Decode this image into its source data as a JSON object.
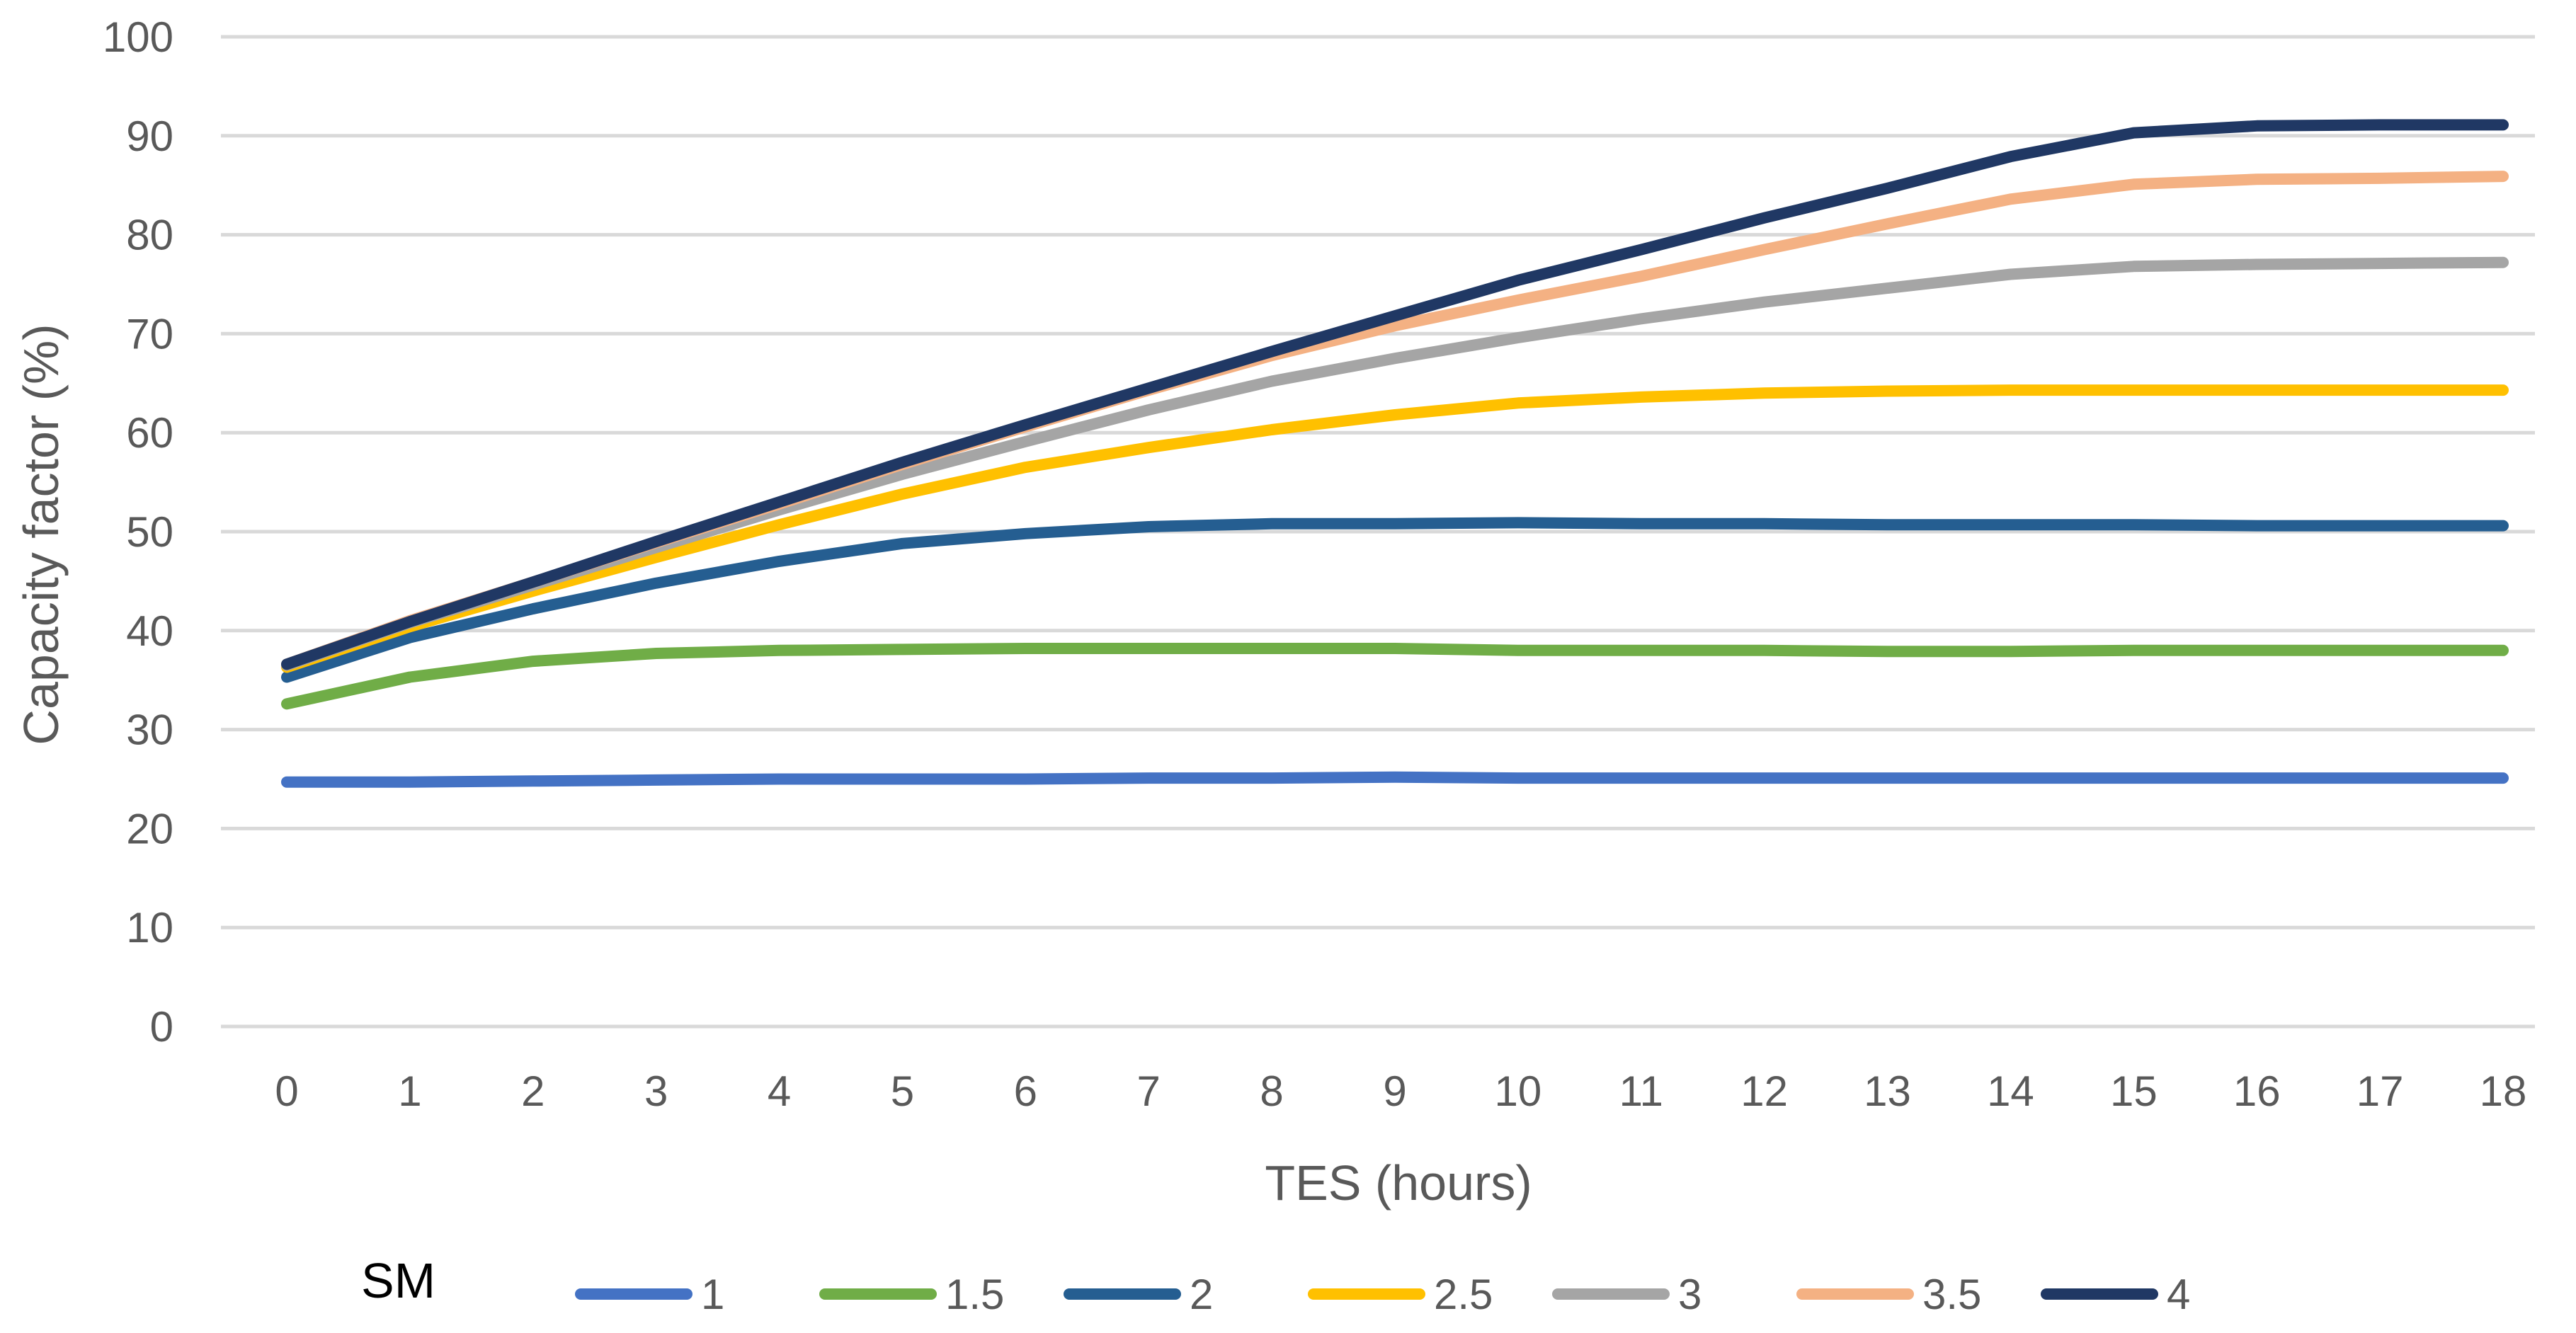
{
  "chart_data": {
    "type": "line",
    "title": "",
    "xlabel": "TES (hours)",
    "ylabel": "Capacity factor (%)",
    "x": [
      0,
      1,
      2,
      3,
      4,
      5,
      6,
      7,
      8,
      9,
      10,
      11,
      12,
      13,
      14,
      15,
      16,
      17,
      18
    ],
    "x_tick_labels": [
      "0",
      "1",
      "2",
      "3",
      "4",
      "5",
      "6",
      "7",
      "8",
      "9",
      "10",
      "11",
      "12",
      "13",
      "14",
      "15",
      "16",
      "17",
      "18"
    ],
    "y_ticks": [
      0,
      10,
      20,
      30,
      40,
      50,
      60,
      70,
      80,
      90,
      100
    ],
    "y_tick_labels": [
      "0",
      "10",
      "20",
      "30",
      "40",
      "50",
      "60",
      "70",
      "80",
      "90",
      "100"
    ],
    "ylim": [
      0,
      100
    ],
    "xlim": [
      0,
      18
    ],
    "grid": true,
    "legend_title": "SM",
    "legend_position": "bottom",
    "series": [
      {
        "name": "1",
        "color": "#4472C4",
        "values": [
          24.7,
          24.7,
          24.8,
          24.9,
          25.0,
          25.0,
          25.0,
          25.1,
          25.1,
          25.2,
          25.1,
          25.1,
          25.1,
          25.1,
          25.1,
          25.1,
          25.1,
          25.1,
          25.1
        ]
      },
      {
        "name": "1.5",
        "color": "#70AD47",
        "values": [
          32.6,
          35.3,
          36.9,
          37.7,
          38.0,
          38.1,
          38.2,
          38.2,
          38.2,
          38.2,
          38.0,
          38.0,
          38.0,
          37.9,
          37.9,
          38.0,
          38.0,
          38.0,
          38.0
        ]
      },
      {
        "name": "2",
        "color": "#255E91",
        "values": [
          35.3,
          39.3,
          42.2,
          44.8,
          47.0,
          48.8,
          49.8,
          50.5,
          50.8,
          50.8,
          50.9,
          50.8,
          50.8,
          50.7,
          50.7,
          50.7,
          50.6,
          50.6,
          50.6
        ]
      },
      {
        "name": "2.5",
        "color": "#FFC000",
        "values": [
          36.3,
          40.4,
          44.0,
          47.4,
          50.7,
          53.8,
          56.5,
          58.5,
          60.3,
          61.8,
          63.0,
          63.6,
          64.0,
          64.2,
          64.3,
          64.3,
          64.3,
          64.3,
          64.3
        ]
      },
      {
        "name": "3",
        "color": "#A5A5A5",
        "values": [
          36.5,
          40.8,
          44.6,
          48.4,
          52.2,
          55.8,
          59.1,
          62.3,
          65.2,
          67.5,
          69.6,
          71.5,
          73.2,
          74.6,
          76.0,
          76.8,
          77.0,
          77.1,
          77.2
        ]
      },
      {
        "name": "3.5",
        "color": "#F4B183",
        "values": [
          36.6,
          41.0,
          44.9,
          48.9,
          52.8,
          56.8,
          60.6,
          64.3,
          67.8,
          70.8,
          73.4,
          75.8,
          78.5,
          81.1,
          83.6,
          85.1,
          85.6,
          85.7,
          85.9
        ]
      },
      {
        "name": "4",
        "color": "#203864",
        "values": [
          36.6,
          40.9,
          44.9,
          49.0,
          53.0,
          57.0,
          60.8,
          64.5,
          68.2,
          71.8,
          75.4,
          78.5,
          81.7,
          84.7,
          87.9,
          90.3,
          91.0,
          91.1,
          91.1
        ]
      }
    ]
  }
}
